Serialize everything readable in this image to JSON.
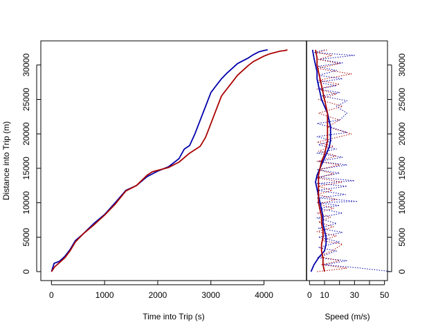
{
  "colors": {
    "blue": "#0000aa",
    "red": "#aa0000",
    "axis": "#000000"
  },
  "chart_data": [
    {
      "type": "line",
      "title": "",
      "xlabel": "Time into Trip (s)",
      "ylabel": "Distance into Trip (m)",
      "xlim": [
        -200,
        4800
      ],
      "ylim": [
        -1300,
        33500
      ],
      "xticks": [
        0,
        1000,
        2000,
        3000,
        4000
      ],
      "yticks": [
        0,
        5000,
        10000,
        15000,
        20000,
        25000,
        30000
      ],
      "xticklabels": [
        "0",
        "1000",
        "2000",
        "3000",
        "4000"
      ],
      "yticklabels": [
        "0",
        "5000",
        "10000",
        "15000",
        "20000",
        "25000",
        "30000"
      ],
      "grid": false,
      "series": [
        {
          "color": "blue",
          "points": [
            [
              0,
              0
            ],
            [
              50,
              1200
            ],
            [
              150,
              1500
            ],
            [
              250,
              2200
            ],
            [
              350,
              3200
            ],
            [
              450,
              4500
            ],
            [
              600,
              5500
            ],
            [
              800,
              7000
            ],
            [
              1000,
              8300
            ],
            [
              1200,
              10000
            ],
            [
              1400,
              11800
            ],
            [
              1600,
              12500
            ],
            [
              1800,
              13800
            ],
            [
              2000,
              14600
            ],
            [
              2200,
              15200
            ],
            [
              2300,
              15800
            ],
            [
              2400,
              16400
            ],
            [
              2500,
              17800
            ],
            [
              2600,
              18300
            ],
            [
              2700,
              20000
            ],
            [
              2800,
              22000
            ],
            [
              2900,
              24000
            ],
            [
              3000,
              26000
            ],
            [
              3100,
              27000
            ],
            [
              3200,
              28000
            ],
            [
              3300,
              28800
            ],
            [
              3400,
              29500
            ],
            [
              3500,
              30200
            ],
            [
              3600,
              30600
            ],
            [
              3700,
              31000
            ],
            [
              3800,
              31500
            ],
            [
              3900,
              31900
            ],
            [
              4000,
              32100
            ],
            [
              4070,
              32200
            ]
          ]
        },
        {
          "color": "red",
          "points": [
            [
              0,
              0
            ],
            [
              60,
              700
            ],
            [
              150,
              1300
            ],
            [
              250,
              2000
            ],
            [
              350,
              3000
            ],
            [
              450,
              4300
            ],
            [
              600,
              5500
            ],
            [
              800,
              6800
            ],
            [
              1000,
              8200
            ],
            [
              1200,
              9800
            ],
            [
              1400,
              11700
            ],
            [
              1600,
              12500
            ],
            [
              1800,
              14000
            ],
            [
              1900,
              14500
            ],
            [
              2000,
              14700
            ],
            [
              2200,
              15100
            ],
            [
              2400,
              15900
            ],
            [
              2600,
              17200
            ],
            [
              2800,
              18200
            ],
            [
              2900,
              19500
            ],
            [
              3000,
              21500
            ],
            [
              3100,
              23500
            ],
            [
              3200,
              25500
            ],
            [
              3300,
              26500
            ],
            [
              3400,
              27500
            ],
            [
              3500,
              28500
            ],
            [
              3600,
              29200
            ],
            [
              3700,
              29900
            ],
            [
              3800,
              30500
            ],
            [
              3900,
              30900
            ],
            [
              4000,
              31300
            ],
            [
              4100,
              31600
            ],
            [
              4200,
              31800
            ],
            [
              4300,
              32000
            ],
            [
              4400,
              32100
            ],
            [
              4440,
              32200
            ]
          ]
        }
      ]
    },
    {
      "type": "line",
      "title": "",
      "xlabel": "Speed (m/s)",
      "ylabel": "",
      "xlim": [
        -2,
        52
      ],
      "ylim": [
        -1300,
        33500
      ],
      "xticks": [
        0,
        10,
        20,
        30,
        40,
        50
      ],
      "xticklabels": [
        "0",
        "10",
        "",
        "30",
        "",
        "50"
      ],
      "yticks": [
        0,
        5000,
        10000,
        15000,
        20000,
        25000,
        30000
      ],
      "yticklabels": [
        "0",
        "5000",
        "10000",
        "15000",
        "20000",
        "25000",
        "30000"
      ],
      "grid": false,
      "series": [
        {
          "color": "blue",
          "style": "dotted",
          "points": [
            [
              55,
              0
            ],
            [
              30,
              600
            ],
            [
              10,
              1000
            ],
            [
              25,
              1600
            ],
            [
              5,
              2000
            ],
            [
              18,
              3000
            ],
            [
              6,
              3500
            ],
            [
              20,
              4300
            ],
            [
              6,
              5000
            ],
            [
              22,
              5700
            ],
            [
              6,
              6300
            ],
            [
              18,
              7000
            ],
            [
              5,
              7800
            ],
            [
              22,
              8500
            ],
            [
              6,
              9200
            ],
            [
              20,
              9600
            ],
            [
              5,
              10000
            ],
            [
              32,
              10200
            ],
            [
              5,
              10700
            ],
            [
              24,
              11200
            ],
            [
              5,
              11800
            ],
            [
              25,
              12400
            ],
            [
              5,
              12800
            ],
            [
              30,
              13200
            ],
            [
              5,
              13700
            ],
            [
              20,
              14300
            ],
            [
              5,
              14800
            ],
            [
              25,
              15500
            ],
            [
              6,
              16000
            ],
            [
              22,
              16600
            ],
            [
              5,
              17200
            ],
            [
              18,
              17800
            ],
            [
              6,
              18400
            ],
            [
              15,
              19000
            ],
            [
              5,
              19600
            ],
            [
              25,
              20200
            ],
            [
              14,
              21000
            ],
            [
              5,
              21500
            ],
            [
              20,
              22000
            ],
            [
              25,
              23000
            ],
            [
              18,
              24000
            ],
            [
              25,
              24800
            ],
            [
              8,
              25500
            ],
            [
              20,
              26000
            ],
            [
              6,
              26500
            ],
            [
              18,
              27000
            ],
            [
              5,
              27500
            ],
            [
              22,
              28000
            ],
            [
              6,
              28500
            ],
            [
              18,
              29200
            ],
            [
              5,
              29800
            ],
            [
              22,
              30300
            ],
            [
              6,
              30800
            ],
            [
              30,
              31400
            ],
            [
              3,
              31800
            ],
            [
              10,
              32200
            ]
          ]
        },
        {
          "color": "red",
          "style": "dotted",
          "points": [
            [
              5,
              0
            ],
            [
              25,
              500
            ],
            [
              8,
              1000
            ],
            [
              20,
              1600
            ],
            [
              6,
              2200
            ],
            [
              15,
              3000
            ],
            [
              22,
              4000
            ],
            [
              8,
              4500
            ],
            [
              18,
              5200
            ],
            [
              5,
              5800
            ],
            [
              16,
              6500
            ],
            [
              6,
              7200
            ],
            [
              14,
              7900
            ],
            [
              5,
              8500
            ],
            [
              16,
              9200
            ],
            [
              6,
              9800
            ],
            [
              18,
              10500
            ],
            [
              5,
              11200
            ],
            [
              15,
              11800
            ],
            [
              6,
              12400
            ],
            [
              22,
              13000
            ],
            [
              5,
              13600
            ],
            [
              16,
              14200
            ],
            [
              6,
              14800
            ],
            [
              20,
              15500
            ],
            [
              5,
              16000
            ],
            [
              18,
              16800
            ],
            [
              6,
              17500
            ],
            [
              16,
              18200
            ],
            [
              5,
              18800
            ],
            [
              28,
              20000
            ],
            [
              12,
              21000
            ],
            [
              20,
              22000
            ],
            [
              6,
              23000
            ],
            [
              22,
              24000
            ],
            [
              6,
              25000
            ],
            [
              18,
              25800
            ],
            [
              5,
              26500
            ],
            [
              20,
              27200
            ],
            [
              6,
              27800
            ],
            [
              28,
              28700
            ],
            [
              5,
              29500
            ],
            [
              20,
              30200
            ],
            [
              6,
              30800
            ],
            [
              15,
              31400
            ],
            [
              5,
              31800
            ],
            [
              12,
              32200
            ]
          ]
        },
        {
          "color": "blue",
          "style": "solid",
          "points": [
            [
              1,
              0
            ],
            [
              3,
              1000
            ],
            [
              6,
              2000
            ],
            [
              10,
              3000
            ],
            [
              11,
              4000
            ],
            [
              11,
              5000
            ],
            [
              10,
              6000
            ],
            [
              9,
              7000
            ],
            [
              9,
              8000
            ],
            [
              8,
              9000
            ],
            [
              7,
              10000
            ],
            [
              6,
              11000
            ],
            [
              5,
              12000
            ],
            [
              4,
              13000
            ],
            [
              5,
              14000
            ],
            [
              7,
              15000
            ],
            [
              9,
              16000
            ],
            [
              11,
              17000
            ],
            [
              13,
              18000
            ],
            [
              14,
              19000
            ],
            [
              14,
              20000
            ],
            [
              14,
              21000
            ],
            [
              13,
              22000
            ],
            [
              12,
              23000
            ],
            [
              10,
              24000
            ],
            [
              8,
              25000
            ],
            [
              7,
              26000
            ],
            [
              6,
              27000
            ],
            [
              5,
              28000
            ],
            [
              5,
              29000
            ],
            [
              4,
              30000
            ],
            [
              3,
              31000
            ],
            [
              2,
              32200
            ]
          ]
        },
        {
          "color": "red",
          "style": "solid",
          "points": [
            [
              10,
              0
            ],
            [
              9,
              1000
            ],
            [
              9,
              2000
            ],
            [
              8,
              3000
            ],
            [
              8,
              4000
            ],
            [
              9,
              5000
            ],
            [
              9,
              6000
            ],
            [
              8,
              7000
            ],
            [
              8,
              8000
            ],
            [
              7,
              9000
            ],
            [
              6,
              10000
            ],
            [
              6,
              11000
            ],
            [
              6,
              12000
            ],
            [
              6,
              13000
            ],
            [
              6,
              14000
            ],
            [
              7,
              15000
            ],
            [
              8,
              16000
            ],
            [
              10,
              17000
            ],
            [
              11,
              18000
            ],
            [
              12,
              19000
            ],
            [
              12,
              20000
            ],
            [
              12,
              21000
            ],
            [
              12,
              22000
            ],
            [
              12,
              23000
            ],
            [
              11,
              24000
            ],
            [
              10,
              25000
            ],
            [
              9,
              26000
            ],
            [
              8,
              27000
            ],
            [
              7,
              28000
            ],
            [
              6,
              29000
            ],
            [
              5,
              30000
            ],
            [
              5,
              31000
            ],
            [
              4,
              32200
            ]
          ]
        }
      ]
    }
  ]
}
